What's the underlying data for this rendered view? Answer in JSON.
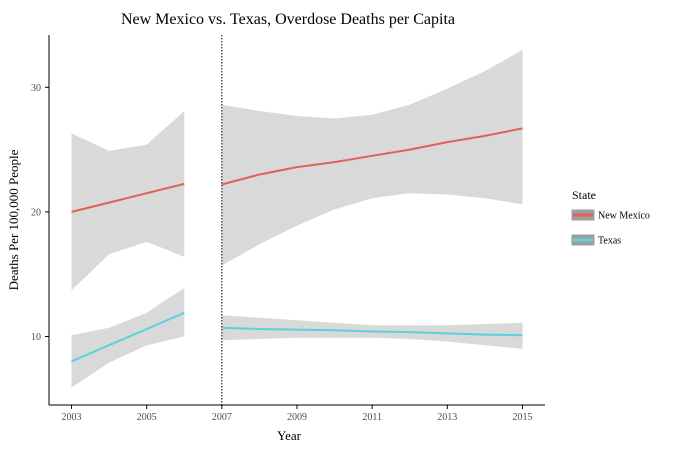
{
  "chart_data": {
    "type": "line",
    "title": "New Mexico vs. Texas, Overdose Deaths per Capita",
    "xlabel": "Year",
    "ylabel": "Deaths Per 100,000 People",
    "xlim": [
      2002.4,
      2015.6
    ],
    "ylim": [
      4.5,
      34.2
    ],
    "x_ticks": [
      2003,
      2005,
      2007,
      2009,
      2011,
      2013,
      2015
    ],
    "y_ticks": [
      10,
      20,
      30
    ],
    "vline_x": 2007,
    "legend": {
      "title": "State",
      "position": "right"
    },
    "series": [
      {
        "name": "New Mexico",
        "color": "#e0605a",
        "segments": [
          {
            "x": [
              2003,
              2004,
              2005,
              2006
            ],
            "y": [
              20.0,
              20.75,
              21.5,
              22.25
            ],
            "lower": [
              13.7,
              16.6,
              17.6,
              16.4
            ],
            "upper": [
              26.3,
              24.9,
              25.4,
              28.1
            ]
          },
          {
            "x": [
              2007,
              2008,
              2009,
              2010,
              2011,
              2012,
              2013,
              2014,
              2015
            ],
            "y": [
              22.2,
              23.0,
              23.6,
              24.0,
              24.5,
              25.0,
              25.6,
              26.1,
              26.7
            ],
            "lower": [
              15.7,
              17.4,
              18.9,
              20.2,
              21.1,
              21.5,
              21.4,
              21.1,
              20.6
            ],
            "upper": [
              28.6,
              28.1,
              27.7,
              27.5,
              27.8,
              28.6,
              29.9,
              31.3,
              33.0
            ]
          }
        ]
      },
      {
        "name": "Texas",
        "color": "#5bd0df",
        "segments": [
          {
            "x": [
              2003,
              2004,
              2005,
              2006
            ],
            "y": [
              8.0,
              9.3,
              10.6,
              11.9
            ],
            "lower": [
              5.9,
              7.9,
              9.3,
              10.0
            ],
            "upper": [
              10.1,
              10.7,
              11.9,
              13.9
            ]
          },
          {
            "x": [
              2007,
              2008,
              2009,
              2010,
              2011,
              2012,
              2013,
              2014,
              2015
            ],
            "y": [
              10.7,
              10.6,
              10.55,
              10.5,
              10.4,
              10.35,
              10.25,
              10.15,
              10.1
            ],
            "lower": [
              9.7,
              9.8,
              9.9,
              9.9,
              9.9,
              9.8,
              9.6,
              9.3,
              9.0
            ],
            "upper": [
              11.7,
              11.5,
              11.3,
              11.1,
              10.9,
              10.9,
              10.9,
              11.0,
              11.1
            ]
          }
        ]
      }
    ],
    "band_color": "#d9d9d9"
  }
}
